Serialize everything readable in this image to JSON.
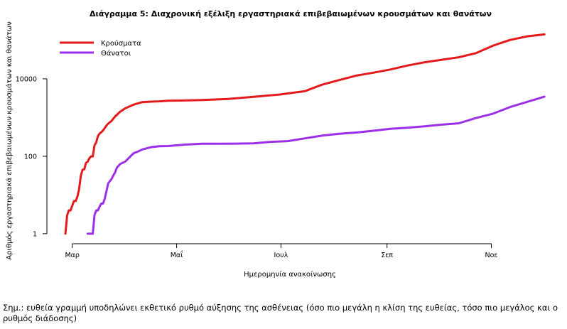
{
  "chart_data": {
    "type": "line",
    "title": "Διάγραμμα 5: Διαχρονική εξέλιξη εργαστηριακά επιβεβαιωμένων κρουσμάτων και θανάτων",
    "xlabel": "Ημερομηνία ανακοίνωσης",
    "ylabel": "Αριθμός εργαστηριακά επιβεβαιωμένων κρουσμάτων και θανάτων",
    "yscale": "log",
    "ylim": [
      0.6,
      200000
    ],
    "xlim": [
      -10,
      282
    ],
    "x_unit": "days since 26 Feb",
    "x_ticks": [
      {
        "label": "Μαρ",
        "value": 4
      },
      {
        "label": "Μαΐ",
        "value": 65
      },
      {
        "label": "Ιουλ",
        "value": 126
      },
      {
        "label": "Σεπ",
        "value": 188
      },
      {
        "label": "Νοε",
        "value": 249
      }
    ],
    "y_ticks": [
      {
        "label": "1",
        "value": 1
      },
      {
        "label": "100",
        "value": 100
      },
      {
        "label": "10000",
        "value": 10000
      }
    ],
    "legend_position": "top-left",
    "series": [
      {
        "name": "Κρούσματα",
        "color": "#e31a1c",
        "x": [
          0,
          1,
          2,
          3,
          5,
          6,
          7,
          8,
          9,
          10,
          11,
          12,
          13,
          14,
          15,
          16,
          17,
          18,
          19,
          20,
          21,
          22,
          24,
          25,
          27,
          29,
          32,
          35,
          40,
          45,
          50,
          55,
          60,
          70,
          80,
          95,
          110,
          125,
          140,
          150,
          160,
          170,
          180,
          190,
          200,
          210,
          220,
          230,
          240,
          250,
          260,
          270,
          280
        ],
        "y": [
          1,
          3,
          4,
          4,
          7,
          7,
          9,
          14,
          31,
          45,
          46,
          67,
          73,
          89,
          99,
          99,
          190,
          228,
          331,
          387,
          418,
          464,
          624,
          695,
          821,
          1061,
          1415,
          1735,
          2170,
          2506,
          2576,
          2626,
          2710,
          2760,
          2840,
          3010,
          3430,
          3910,
          4800,
          7050,
          9280,
          12080,
          14400,
          17400,
          22000,
          26800,
          31000,
          36000,
          46000,
          72000,
          101000,
          125000,
          140000
        ]
      },
      {
        "name": "Θάνατοι",
        "color": "#9b30e8",
        "x": [
          13,
          14,
          15,
          16,
          17,
          18,
          19,
          20,
          21,
          22,
          23,
          25,
          27,
          28,
          29,
          30,
          32,
          35,
          38,
          40,
          42,
          45,
          50,
          55,
          60,
          65,
          70,
          80,
          90,
          100,
          110,
          120,
          130,
          140,
          150,
          160,
          170,
          180,
          190,
          200,
          210,
          220,
          230,
          240,
          250,
          260,
          270,
          280
        ],
        "y": [
          1,
          1,
          1,
          1,
          3,
          4,
          4,
          5,
          6,
          6,
          8,
          20,
          26,
          32,
          38,
          50,
          63,
          73,
          100,
          121,
          130,
          150,
          172,
          182,
          184,
          192,
          200,
          210,
          210,
          212,
          216,
          236,
          246,
          290,
          340,
          380,
          410,
          456,
          510,
          546,
          595,
          657,
          709,
          970,
          1260,
          1870,
          2550,
          3450
        ]
      }
    ]
  },
  "note": "Σημ.: ευθεία γραμμή υποδηλώνει εκθετικό ρυθμό αύξησης της ασθένειας (όσο πιο μεγάλη η κλίση της ευθείας, τόσο πιο μεγάλος και ο ρυθμός διάδοσης)"
}
